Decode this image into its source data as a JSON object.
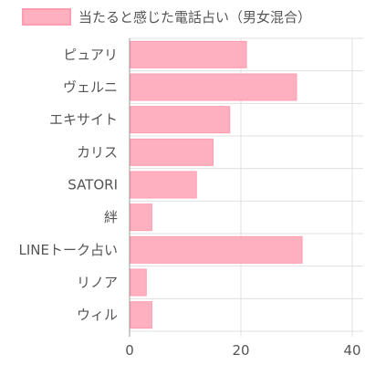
{
  "chart_data": {
    "type": "bar",
    "orientation": "horizontal",
    "categories": [
      "ピュアリ",
      "ヴェルニ",
      "エキサイト",
      "カリス",
      "SATORI",
      "絆",
      "LINEトーク占い",
      "リノア",
      "ウィル"
    ],
    "series": [
      {
        "name": "当たると感じた電話占い（男女混合）",
        "values": [
          21,
          30,
          18,
          15,
          12,
          4,
          31,
          3,
          4
        ]
      }
    ],
    "xlim": [
      0,
      42
    ],
    "xticks": [
      0,
      20,
      40
    ],
    "grid": true,
    "legend": "top",
    "colors": {
      "bar_fill": "#ffb0c0",
      "bar_stroke": "#ff9cb0",
      "grid": "#e0e0e0",
      "axis": "#999999",
      "text": "#555555"
    }
  }
}
